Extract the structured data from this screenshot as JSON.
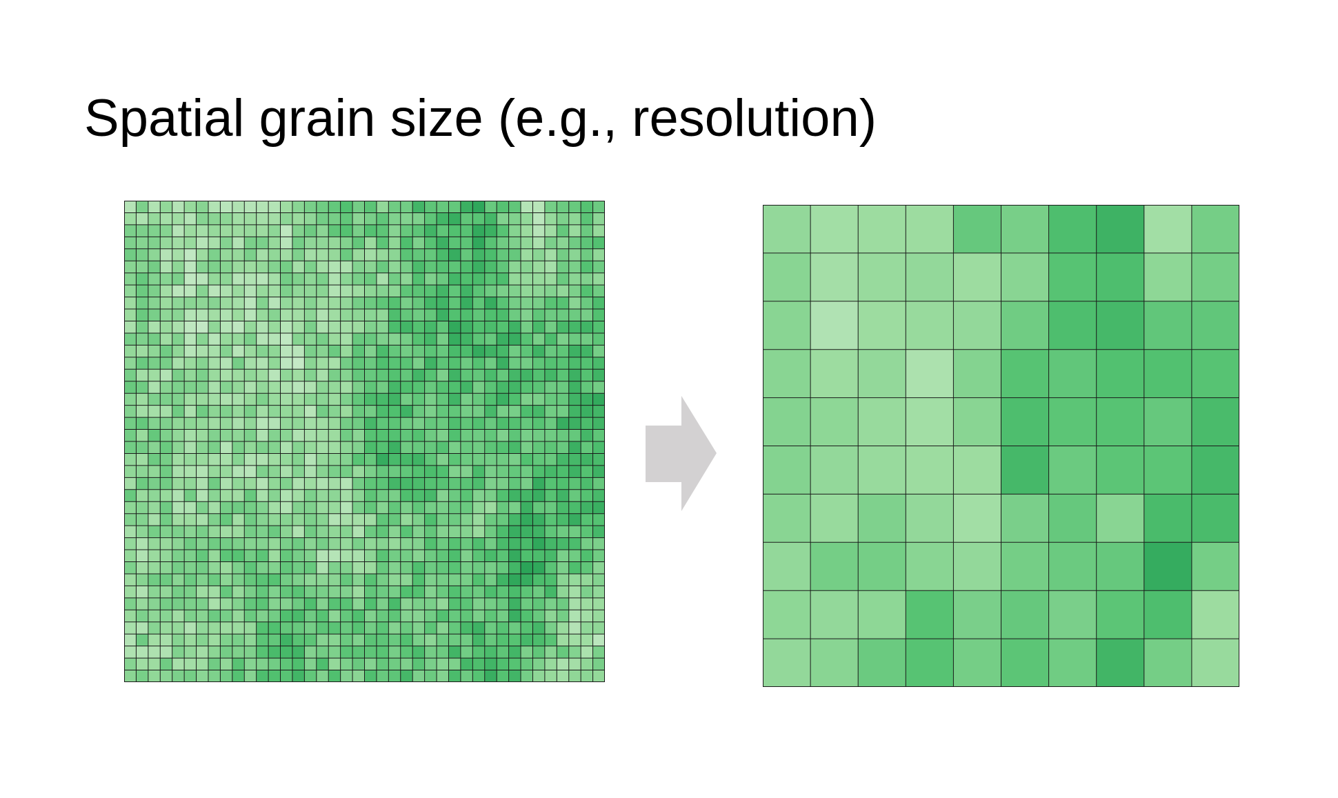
{
  "title": "Spatial grain size (e.g., resolution)",
  "colors": {
    "background": "#ffffff",
    "title_text": "#000000",
    "grid_line": "#1a1a1a",
    "arrow": "#d3d1d2",
    "green_lightest": "#e6f4e6",
    "green_darkest": "#00843e"
  },
  "fine_grid": {
    "rows": 40,
    "cols": 40,
    "depicts": "fine-resolution raster"
  },
  "coarse_grid": {
    "rows": 10,
    "cols": 10,
    "depicts": "coarse-resolution raster",
    "values": [
      [
        0.34,
        0.28,
        0.3,
        0.3,
        0.52,
        0.45,
        0.62,
        0.7,
        0.28,
        0.46
      ],
      [
        0.38,
        0.27,
        0.32,
        0.34,
        0.3,
        0.38,
        0.58,
        0.62,
        0.36,
        0.46
      ],
      [
        0.38,
        0.22,
        0.3,
        0.32,
        0.34,
        0.48,
        0.62,
        0.66,
        0.54,
        0.54
      ],
      [
        0.38,
        0.3,
        0.34,
        0.24,
        0.4,
        0.58,
        0.54,
        0.6,
        0.6,
        0.58
      ],
      [
        0.4,
        0.36,
        0.32,
        0.28,
        0.38,
        0.62,
        0.56,
        0.58,
        0.52,
        0.64
      ],
      [
        0.4,
        0.34,
        0.32,
        0.3,
        0.3,
        0.66,
        0.5,
        0.56,
        0.56,
        0.66
      ],
      [
        0.38,
        0.32,
        0.42,
        0.34,
        0.28,
        0.44,
        0.52,
        0.38,
        0.64,
        0.64
      ],
      [
        0.34,
        0.46,
        0.46,
        0.38,
        0.34,
        0.46,
        0.5,
        0.52,
        0.74,
        0.46
      ],
      [
        0.36,
        0.34,
        0.36,
        0.58,
        0.44,
        0.52,
        0.44,
        0.56,
        0.62,
        0.3
      ],
      [
        0.34,
        0.38,
        0.5,
        0.58,
        0.46,
        0.56,
        0.48,
        0.68,
        0.46,
        0.32
      ]
    ]
  },
  "arrow": {
    "direction": "right"
  }
}
